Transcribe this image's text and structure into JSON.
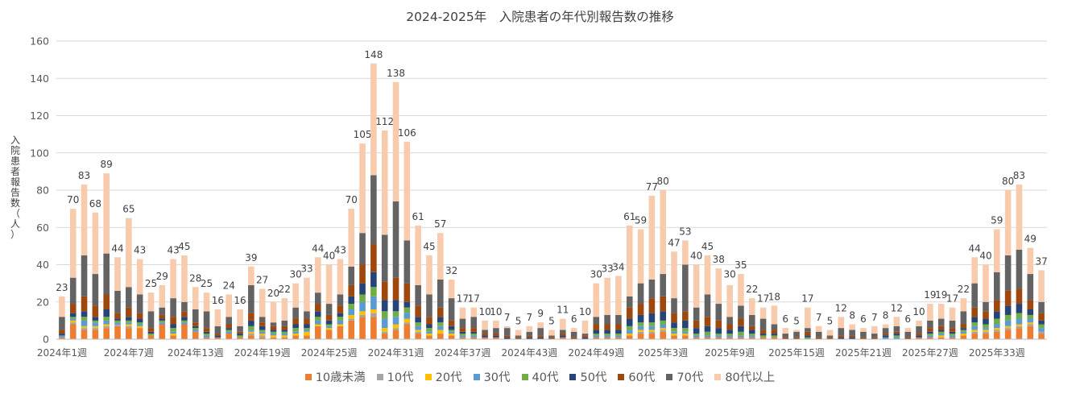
{
  "chart_data": {
    "type": "bar",
    "stacked": true,
    "title": "2024-2025年　入院患者の年代別報告数の推移",
    "ylabel": "入院患者報告数（人）",
    "ylim": [
      0,
      160
    ],
    "yticks": [
      0,
      20,
      40,
      60,
      80,
      100,
      120,
      140,
      160
    ],
    "grid": true,
    "legend_position": "bottom",
    "x_tick_labels": [
      "2024年1週",
      "2024年7週",
      "2024年13週",
      "2024年19週",
      "2024年25週",
      "2024年31週",
      "2024年37週",
      "2024年43週",
      "2024年49週",
      "2025年3週",
      "2025年9週",
      "2025年15週",
      "2025年21週",
      "2025年27週",
      "2025年33週"
    ],
    "totals": [
      23,
      70,
      83,
      68,
      89,
      44,
      65,
      43,
      25,
      29,
      43,
      45,
      28,
      25,
      16,
      24,
      16,
      39,
      27,
      20,
      22,
      30,
      33,
      44,
      40,
      43,
      70,
      105,
      148,
      112,
      138,
      106,
      61,
      45,
      57,
      32,
      17,
      17,
      10,
      10,
      7,
      5,
      7,
      9,
      5,
      11,
      6,
      10,
      30,
      33,
      34,
      61,
      59,
      77,
      80,
      47,
      53,
      40,
      45,
      38,
      30,
      35,
      22,
      17,
      18,
      6,
      5,
      17,
      7,
      5,
      12,
      8,
      6,
      7,
      8,
      12,
      6,
      10,
      19,
      19,
      17,
      22,
      44,
      40,
      59,
      80,
      83,
      49,
      37
    ],
    "series": [
      {
        "name": "10歳未満",
        "color": "#ED7D31",
        "values": [
          1,
          8,
          5,
          5,
          6,
          7,
          6,
          6,
          2,
          8,
          2,
          8,
          4,
          1,
          1,
          3,
          1,
          2,
          1,
          1,
          1,
          2,
          2,
          7,
          5,
          7,
          10,
          12,
          12,
          3,
          5,
          8,
          3,
          2,
          3,
          2,
          1,
          1,
          1,
          1,
          0,
          0,
          0,
          0,
          0,
          1,
          0,
          0,
          1,
          1,
          1,
          2,
          3,
          3,
          4,
          2,
          2,
          1,
          1,
          1,
          1,
          1,
          1,
          1,
          1,
          0,
          0,
          0,
          0,
          0,
          0,
          0,
          0,
          0,
          0,
          0,
          0,
          1,
          1,
          1,
          1,
          2,
          3,
          3,
          4,
          5,
          6,
          7,
          3
        ]
      },
      {
        "name": "10代",
        "color": "#A5A5A5",
        "values": [
          0,
          1,
          1,
          1,
          1,
          1,
          1,
          0,
          0,
          0,
          0,
          0,
          0,
          0,
          0,
          0,
          0,
          1,
          1,
          0,
          0,
          0,
          0,
          0,
          0,
          0,
          1,
          1,
          2,
          1,
          1,
          1,
          1,
          0,
          0,
          0,
          0,
          0,
          0,
          0,
          0,
          0,
          0,
          0,
          0,
          0,
          0,
          0,
          0,
          0,
          0,
          0,
          1,
          1,
          1,
          0,
          0,
          0,
          0,
          0,
          0,
          0,
          0,
          0,
          0,
          0,
          0,
          0,
          0,
          0,
          0,
          0,
          0,
          0,
          0,
          0,
          0,
          0,
          0,
          0,
          0,
          0,
          1,
          1,
          1,
          1,
          1,
          1,
          1
        ]
      },
      {
        "name": "20代",
        "color": "#FFC000",
        "values": [
          0,
          1,
          1,
          1,
          1,
          0,
          1,
          1,
          0,
          0,
          1,
          0,
          0,
          0,
          0,
          0,
          0,
          1,
          1,
          1,
          1,
          1,
          2,
          1,
          1,
          1,
          2,
          2,
          2,
          2,
          2,
          2,
          1,
          1,
          2,
          1,
          0,
          0,
          0,
          0,
          0,
          0,
          0,
          0,
          0,
          0,
          0,
          0,
          0,
          0,
          0,
          1,
          1,
          1,
          1,
          1,
          1,
          0,
          0,
          0,
          0,
          0,
          0,
          0,
          0,
          0,
          0,
          0,
          0,
          0,
          0,
          0,
          0,
          0,
          0,
          0,
          0,
          0,
          0,
          1,
          0,
          1,
          1,
          1,
          1,
          1,
          1,
          1,
          0
        ]
      },
      {
        "name": "30代",
        "color": "#5B9BD5",
        "values": [
          1,
          1,
          3,
          2,
          2,
          1,
          1,
          1,
          0,
          1,
          1,
          1,
          1,
          1,
          0,
          1,
          0,
          1,
          1,
          1,
          1,
          1,
          1,
          2,
          1,
          2,
          3,
          5,
          7,
          5,
          4,
          3,
          2,
          1,
          2,
          1,
          1,
          1,
          0,
          0,
          0,
          0,
          0,
          0,
          0,
          0,
          0,
          0,
          1,
          1,
          1,
          2,
          2,
          2,
          2,
          1,
          1,
          1,
          1,
          1,
          1,
          1,
          1,
          0,
          0,
          0,
          0,
          0,
          0,
          0,
          0,
          0,
          0,
          0,
          1,
          1,
          0,
          0,
          1,
          1,
          1,
          1,
          2,
          1,
          2,
          3,
          3,
          2,
          2
        ]
      },
      {
        "name": "40代",
        "color": "#70AD47",
        "values": [
          0,
          1,
          2,
          1,
          2,
          1,
          1,
          1,
          1,
          1,
          2,
          1,
          1,
          1,
          0,
          1,
          1,
          2,
          1,
          1,
          1,
          2,
          1,
          2,
          1,
          2,
          3,
          4,
          5,
          4,
          3,
          3,
          2,
          2,
          2,
          1,
          1,
          1,
          0,
          0,
          0,
          0,
          0,
          0,
          0,
          0,
          0,
          0,
          1,
          1,
          1,
          2,
          2,
          2,
          2,
          2,
          2,
          1,
          2,
          1,
          1,
          2,
          1,
          1,
          1,
          0,
          0,
          1,
          0,
          0,
          0,
          0,
          0,
          0,
          0,
          1,
          0,
          0,
          1,
          1,
          1,
          1,
          2,
          2,
          3,
          3,
          3,
          2,
          2
        ]
      },
      {
        "name": "50代",
        "color": "#264478",
        "values": [
          1,
          2,
          3,
          2,
          4,
          1,
          2,
          2,
          1,
          1,
          2,
          2,
          1,
          1,
          1,
          1,
          1,
          3,
          2,
          1,
          1,
          2,
          2,
          3,
          2,
          2,
          4,
          6,
          8,
          6,
          6,
          3,
          3,
          2,
          3,
          2,
          1,
          1,
          1,
          1,
          1,
          0,
          1,
          1,
          0,
          1,
          0,
          1,
          2,
          2,
          2,
          4,
          4,
          5,
          5,
          3,
          4,
          3,
          3,
          3,
          2,
          3,
          2,
          1,
          1,
          0,
          0,
          1,
          0,
          0,
          1,
          1,
          0,
          0,
          1,
          1,
          0,
          1,
          1,
          1,
          1,
          1,
          3,
          3,
          4,
          5,
          5,
          3,
          2
        ]
      },
      {
        "name": "60代",
        "color": "#9E480E",
        "values": [
          2,
          5,
          8,
          6,
          8,
          3,
          5,
          3,
          2,
          2,
          4,
          3,
          2,
          2,
          1,
          2,
          1,
          4,
          2,
          2,
          2,
          3,
          3,
          4,
          3,
          4,
          6,
          10,
          15,
          10,
          12,
          10,
          6,
          4,
          5,
          3,
          2,
          2,
          1,
          1,
          1,
          1,
          1,
          1,
          1,
          1,
          1,
          1,
          3,
          3,
          3,
          6,
          6,
          8,
          8,
          5,
          5,
          4,
          5,
          4,
          3,
          4,
          2,
          2,
          2,
          1,
          1,
          2,
          1,
          1,
          1,
          1,
          1,
          1,
          1,
          1,
          1,
          1,
          2,
          2,
          2,
          2,
          5,
          4,
          6,
          8,
          8,
          5,
          4
        ]
      },
      {
        "name": "70代",
        "color": "#636363",
        "values": [
          7,
          14,
          22,
          17,
          22,
          12,
          11,
          10,
          9,
          4,
          10,
          5,
          7,
          9,
          4,
          4,
          3,
          15,
          3,
          2,
          3,
          6,
          4,
          6,
          6,
          6,
          10,
          17,
          37,
          25,
          41,
          23,
          11,
          12,
          15,
          12,
          5,
          6,
          2,
          3,
          4,
          1,
          2,
          4,
          1,
          2,
          3,
          1,
          4,
          5,
          5,
          6,
          11,
          10,
          12,
          8,
          25,
          7,
          12,
          9,
          4,
          7,
          6,
          6,
          3,
          2,
          3,
          2,
          3,
          1,
          4,
          3,
          3,
          2,
          3,
          3,
          3,
          4,
          4,
          4,
          4,
          7,
          13,
          5,
          15,
          19,
          21,
          14,
          6
        ]
      },
      {
        "name": "80代以上",
        "color": "#F8CBAD",
        "values": [
          11,
          37,
          38,
          33,
          43,
          18,
          37,
          19,
          10,
          12,
          21,
          25,
          12,
          10,
          9,
          12,
          9,
          10,
          15,
          11,
          12,
          13,
          18,
          19,
          21,
          19,
          31,
          48,
          60,
          56,
          64,
          53,
          32,
          21,
          25,
          10,
          6,
          5,
          5,
          4,
          1,
          3,
          3,
          3,
          3,
          6,
          2,
          7,
          18,
          20,
          21,
          38,
          29,
          45,
          45,
          25,
          13,
          23,
          21,
          19,
          17,
          17,
          9,
          6,
          10,
          3,
          1,
          11,
          3,
          3,
          6,
          3,
          2,
          4,
          2,
          5,
          2,
          3,
          9,
          8,
          7,
          7,
          14,
          20,
          23,
          35,
          35,
          14,
          17
        ]
      }
    ]
  }
}
